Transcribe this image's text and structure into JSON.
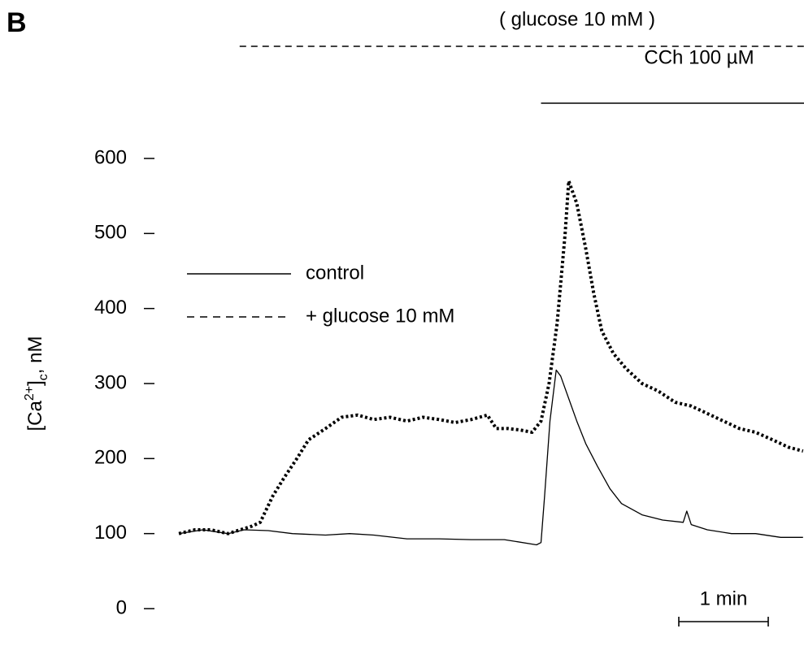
{
  "chart_data": {
    "type": "line",
    "panel_label": "B",
    "ylabel": [
      "[Ca",
      "2+",
      "]",
      "c",
      ", nM"
    ],
    "ylim": [
      0,
      600
    ],
    "yticks": [
      0,
      100,
      200,
      300,
      400,
      500,
      600
    ],
    "xlim": [
      0,
      7
    ],
    "legend": "upper left",
    "series": [
      {
        "name": "control",
        "color": "#000000",
        "style": "solid",
        "x": [
          0,
          0.27,
          0.55,
          0.73,
          1.0,
          1.27,
          1.64,
          1.91,
          2.18,
          2.55,
          2.91,
          3.27,
          3.64,
          4.0,
          4.05,
          4.09,
          4.15,
          4.22,
          4.27,
          4.36,
          4.45,
          4.55,
          4.68,
          4.82,
          4.95,
          5.18,
          5.41,
          5.64,
          5.68,
          5.73,
          5.91,
          6.18,
          6.45,
          6.73,
          6.98
        ],
        "values": [
          100,
          105,
          100,
          105,
          104,
          100,
          98,
          100,
          98,
          93,
          93,
          92,
          92,
          85,
          88,
          150,
          250,
          318,
          310,
          280,
          250,
          220,
          190,
          160,
          140,
          125,
          118,
          115,
          130,
          112,
          105,
          100,
          100,
          95,
          95
        ]
      },
      {
        "name": "+ glucose 10 mM",
        "color": "#000000",
        "style": "dashed",
        "x": [
          0,
          0.18,
          0.36,
          0.55,
          0.82,
          0.91,
          1.05,
          1.18,
          1.32,
          1.45,
          1.64,
          1.82,
          2.0,
          2.18,
          2.36,
          2.55,
          2.73,
          2.91,
          3.09,
          3.27,
          3.45,
          3.55,
          3.68,
          3.82,
          3.95,
          4.05,
          4.14,
          4.23,
          4.32,
          4.36,
          4.45,
          4.55,
          4.64,
          4.73,
          4.86,
          5.0,
          5.18,
          5.36,
          5.55,
          5.73,
          5.91,
          6.09,
          6.27,
          6.45,
          6.64,
          6.82,
          6.98
        ],
        "values": [
          100,
          105,
          105,
          100,
          110,
          115,
          150,
          175,
          200,
          225,
          240,
          255,
          258,
          252,
          255,
          250,
          255,
          252,
          248,
          252,
          258,
          240,
          240,
          238,
          235,
          250,
          300,
          380,
          500,
          570,
          540,
          480,
          420,
          370,
          340,
          320,
          300,
          290,
          275,
          270,
          260,
          250,
          240,
          235,
          225,
          215,
          210
        ]
      }
    ],
    "annotations": [
      {
        "text": "( glucose 10 mM )",
        "start": 0.68,
        "end": 7,
        "style": "dashed"
      },
      {
        "text": "CCh 100 µM",
        "start": 4.05,
        "end": 7,
        "style": "solid"
      }
    ],
    "scale_bar": {
      "label": "1 min",
      "value": 1
    }
  }
}
